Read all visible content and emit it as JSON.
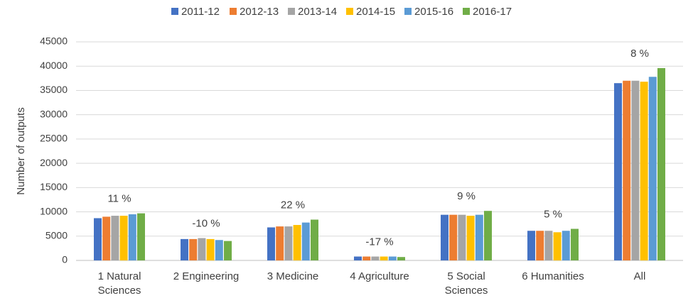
{
  "chart_data": {
    "type": "bar",
    "y_label": "Number of outputs",
    "categories": [
      "1 Natural Sciences",
      "2 Engineering",
      "3 Medicine",
      "4 Agriculture",
      "5 Social Sciences",
      "6 Humanities",
      "All"
    ],
    "annotations": [
      "11 %",
      "-10 %",
      "22 %",
      "-17 %",
      "9 %",
      "5 %",
      "8 %"
    ],
    "series": [
      {
        "name": "2011-12",
        "color": "#4472c4",
        "values": [
          8700,
          4400,
          6800,
          800,
          9400,
          6100,
          36500
        ]
      },
      {
        "name": "2012-13",
        "color": "#ed7d31",
        "values": [
          9000,
          4400,
          7000,
          800,
          9400,
          6100,
          37000
        ]
      },
      {
        "name": "2013-14",
        "color": "#a5a5a5",
        "values": [
          9200,
          4600,
          7000,
          800,
          9400,
          6100,
          37000
        ]
      },
      {
        "name": "2014-15",
        "color": "#ffc000",
        "values": [
          9200,
          4400,
          7300,
          800,
          9200,
          5800,
          36800
        ]
      },
      {
        "name": "2015-16",
        "color": "#5b9bd5",
        "values": [
          9500,
          4200,
          7800,
          800,
          9400,
          6100,
          37800
        ]
      },
      {
        "name": "2016-17",
        "color": "#70ad47",
        "values": [
          9700,
          4000,
          8400,
          700,
          10200,
          6500,
          39600
        ]
      }
    ],
    "ylim": [
      0,
      45000
    ],
    "yticks": [
      0,
      5000,
      10000,
      15000,
      20000,
      25000,
      30000,
      35000,
      40000,
      45000
    ],
    "grid": true,
    "legend": "top"
  }
}
